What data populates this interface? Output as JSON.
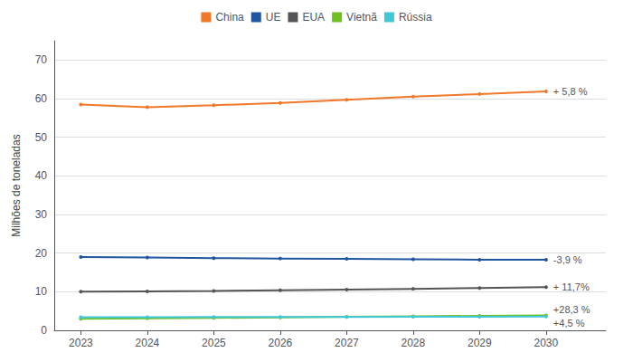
{
  "chart_data": {
    "type": "line",
    "ylabel": "Milhões de toneladas",
    "x": [
      2023,
      2024,
      2025,
      2026,
      2027,
      2028,
      2029,
      2030
    ],
    "xlim": [
      2022.6,
      2030.9
    ],
    "xticks": [
      2023,
      2024,
      2025,
      2026,
      2027,
      2028,
      2029,
      2030
    ],
    "ylim": [
      0,
      75
    ],
    "yticks": [
      0,
      10,
      20,
      30,
      40,
      50,
      60,
      70
    ],
    "grid": true,
    "legend": "top",
    "marker": "circle",
    "series": [
      {
        "name": "China",
        "color": "#F07828",
        "values": [
          58.5,
          57.8,
          58.3,
          58.9,
          59.7,
          60.5,
          61.2,
          61.9
        ],
        "annotation": "+ 5,8 %"
      },
      {
        "name": "UE",
        "color": "#2255A0",
        "values": [
          19.0,
          18.85,
          18.7,
          18.6,
          18.5,
          18.4,
          18.3,
          18.26
        ],
        "annotation": "-3,9 %"
      },
      {
        "name": "EUA",
        "color": "#555555",
        "values": [
          10.0,
          10.1,
          10.2,
          10.35,
          10.55,
          10.75,
          10.95,
          11.17
        ],
        "annotation": "+ 11,7%"
      },
      {
        "name": "Vietnã",
        "color": "#70C020",
        "values": [
          3.0,
          3.12,
          3.22,
          3.35,
          3.5,
          3.65,
          3.75,
          3.85
        ],
        "annotation": "+28,3 %"
      },
      {
        "name": "Rússia",
        "color": "#40C8D8",
        "values": [
          3.4,
          3.42,
          3.44,
          3.46,
          3.48,
          3.5,
          3.52,
          3.555
        ],
        "annotation": "+4,5 %"
      }
    ]
  }
}
